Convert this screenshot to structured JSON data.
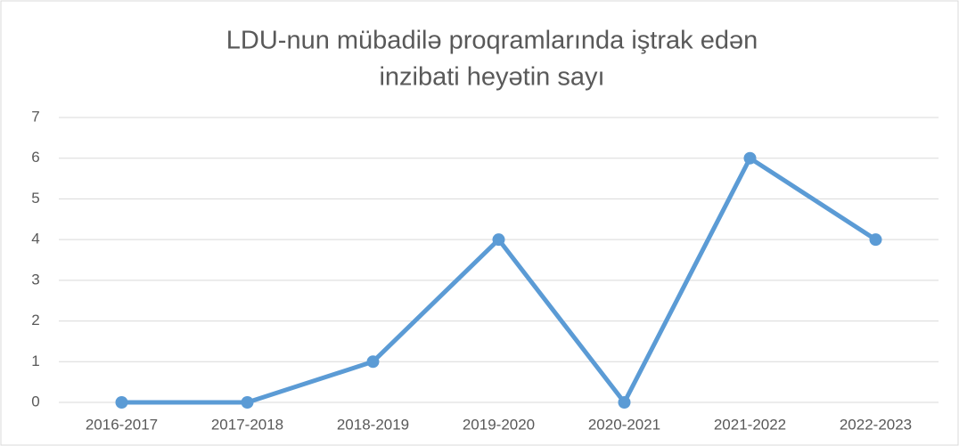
{
  "chart_data": {
    "type": "line",
    "title": [
      "LDU-nun mübadilə proqramlarında iştrak edən",
      "inzibati heyətin  sayı"
    ],
    "categories": [
      "2016-2017",
      "2017-2018",
      "2018-2019",
      "2019-2020",
      "2020-2021",
      "2021-2022",
      "2022-2023"
    ],
    "series": [
      {
        "color": "#5b9bd5",
        "values": [
          0,
          0,
          1,
          4,
          0,
          6,
          4
        ]
      }
    ],
    "ylim": [
      0,
      7
    ],
    "yticks": [
      0,
      1,
      2,
      3,
      4,
      5,
      6,
      7
    ],
    "grid": true
  }
}
